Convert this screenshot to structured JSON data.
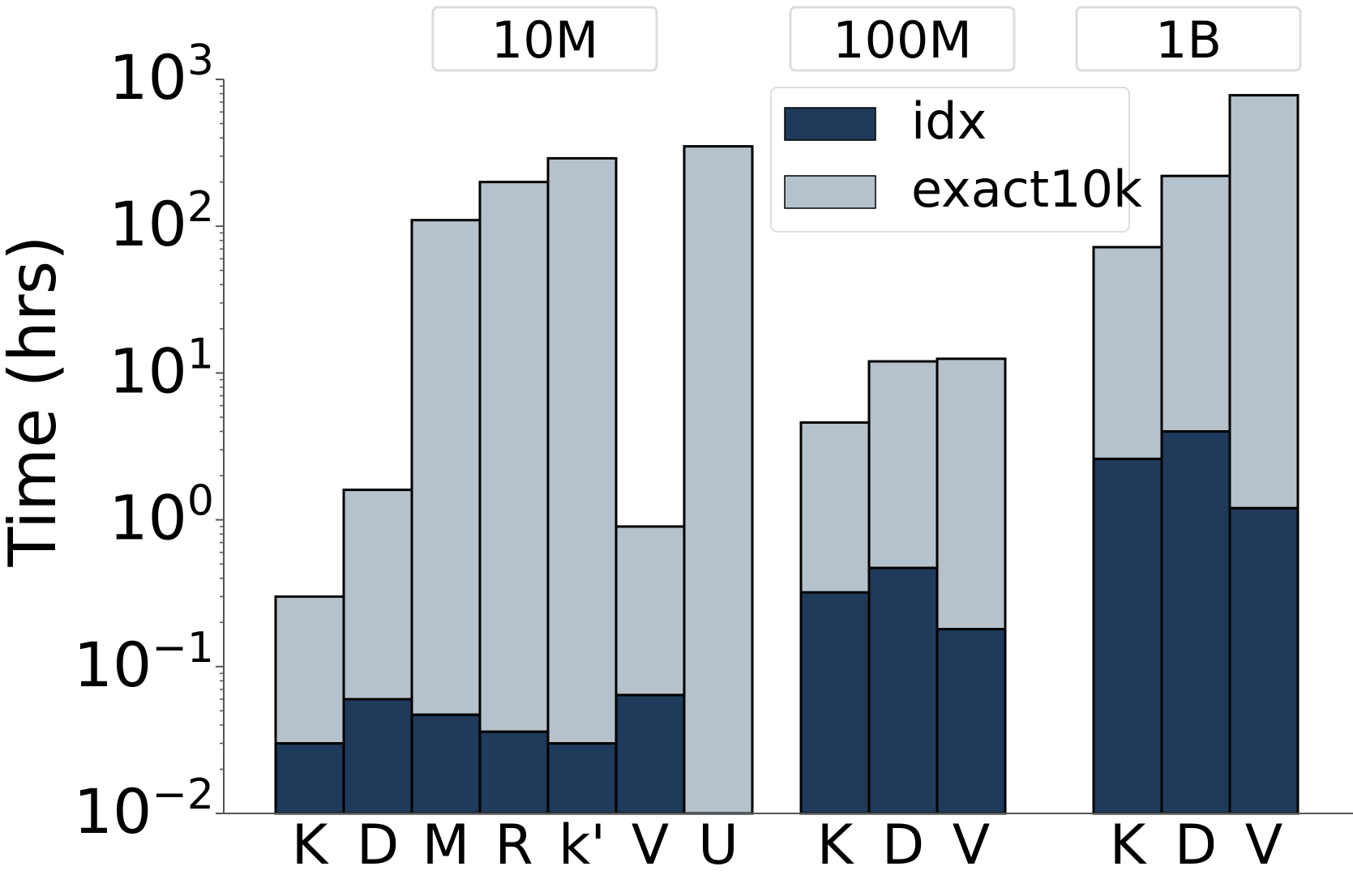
{
  "chart_data": {
    "type": "bar",
    "stacked": true,
    "ylabel": "Time (hrs)",
    "yscale": "log",
    "ylim": [
      0.01,
      1000
    ],
    "yticks": [
      {
        "value": 0.01,
        "base": "10",
        "exp": "−2"
      },
      {
        "value": 0.1,
        "base": "10",
        "exp": "−1"
      },
      {
        "value": 1,
        "base": "10",
        "exp": "0"
      },
      {
        "value": 10,
        "base": "10",
        "exp": "1"
      },
      {
        "value": 100,
        "base": "10",
        "exp": "2"
      },
      {
        "value": 1000,
        "base": "10",
        "exp": "3"
      }
    ],
    "legend": {
      "position": "top-right",
      "entries": [
        {
          "name": "idx",
          "color": "#1f3a5a"
        },
        {
          "name": "exact10k",
          "color": "#b5c2cb"
        }
      ]
    },
    "groups": [
      {
        "label": "10M",
        "categories": [
          "K",
          "D",
          "M",
          "R",
          "k'",
          "V",
          "U"
        ],
        "idx": [
          0.03,
          0.06,
          0.047,
          0.036,
          0.03,
          0.064,
          0
        ],
        "total": [
          0.3,
          1.6,
          110,
          200,
          290,
          0.9,
          350
        ]
      },
      {
        "label": "100M",
        "categories": [
          "K",
          "D",
          "V"
        ],
        "idx": [
          0.32,
          0.47,
          0.18
        ],
        "total": [
          4.6,
          12,
          12.5
        ]
      },
      {
        "label": "1B",
        "categories": [
          "K",
          "D",
          "V"
        ],
        "idx": [
          2.6,
          4.0,
          1.2
        ],
        "total": [
          72,
          220,
          780
        ]
      }
    ]
  }
}
